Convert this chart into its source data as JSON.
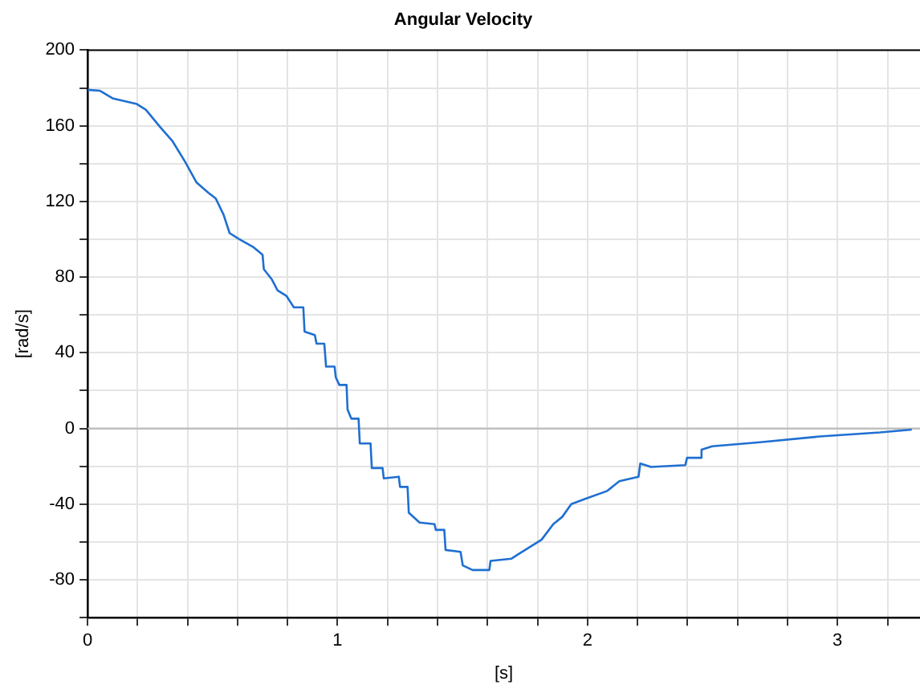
{
  "chart_data": {
    "type": "line",
    "title": "Angular Velocity",
    "xlabel": "[s]",
    "ylabel": "[rad/s]",
    "xlim": [
      0,
      3.33
    ],
    "xticks": [
      0,
      {
        "value": 0.2,
        "label": null
      },
      {
        "value": 0.4,
        "label": null
      },
      {
        "value": 0.6,
        "label": null
      },
      {
        "value": 0.8,
        "label": null
      },
      1,
      {
        "value": 1.2,
        "label": null
      },
      {
        "value": 1.4,
        "label": null
      },
      {
        "value": 1.6,
        "label": null
      },
      {
        "value": 1.8,
        "label": null
      },
      2,
      {
        "value": 2.2,
        "label": null
      },
      {
        "value": 2.4,
        "label": null
      },
      {
        "value": 2.6,
        "label": null
      },
      {
        "value": 2.8,
        "label": null
      },
      3,
      {
        "value": 3.2,
        "label": null
      }
    ],
    "ylim": [
      -100,
      200
    ],
    "yticks": [
      {
        "value": -100,
        "label": null
      },
      -80,
      {
        "value": -60,
        "label": null
      },
      -40,
      {
        "value": -20,
        "label": null
      },
      0,
      {
        "value": 20,
        "label": null
      },
      40,
      {
        "value": 60,
        "label": null
      },
      80,
      {
        "value": 100,
        "label": null
      },
      120,
      {
        "value": 140,
        "label": null
      },
      160,
      {
        "value": 180,
        "label": null
      },
      200
    ],
    "grid": true,
    "legend": false,
    "marker": "none",
    "line_style": "solid",
    "ref_lines": [
      {
        "axis": "y",
        "value": 0,
        "color": "#bbbbbb"
      }
    ],
    "series": [
      {
        "color": "#1f6fd1",
        "x": [
          0,
          0.05,
          0.1,
          0.197,
          0.233,
          0.29,
          0.34,
          0.39,
          0.436,
          0.484,
          0.513,
          0.544,
          0.568,
          0.604,
          0.664,
          0.7,
          0.705,
          0.736,
          0.76,
          0.796,
          0.825,
          0.863,
          0.868,
          0.909,
          0.916,
          0.947,
          0.954,
          0.988,
          0.993,
          1.007,
          1.036,
          1.04,
          1.055,
          1.084,
          1.089,
          1.132,
          1.137,
          1.18,
          1.185,
          1.245,
          1.25,
          1.28,
          1.285,
          1.328,
          1.388,
          1.393,
          1.427,
          1.432,
          1.492,
          1.501,
          1.54,
          1.607,
          1.612,
          1.696,
          1.731,
          1.816,
          1.863,
          1.899,
          1.935,
          1.995,
          2.079,
          2.127,
          2.204,
          2.211,
          2.254,
          2.391,
          2.398,
          2.451,
          2.456,
          2.499,
          2.69,
          2.93,
          3.17,
          3.297
        ],
        "values": [
          179,
          178.5,
          174.5,
          171.5,
          168.5,
          159.4,
          151.8,
          141,
          130,
          124.5,
          121.5,
          113,
          103.3,
          100.3,
          95.8,
          91.8,
          84.2,
          79,
          73,
          70,
          64,
          64,
          51.2,
          49.4,
          44.8,
          44.8,
          32.7,
          32.7,
          27,
          23,
          23,
          10,
          5.2,
          5.2,
          -7.9,
          -7.9,
          -20.9,
          -20.9,
          -26.4,
          -25.5,
          -30.9,
          -30.9,
          -44.5,
          -49.7,
          -50.6,
          -53.6,
          -53.6,
          -64.2,
          -65.2,
          -72.4,
          -74.8,
          -74.8,
          -70,
          -68.8,
          -65.8,
          -58.8,
          -50.6,
          -46.7,
          -40,
          -37,
          -33,
          -27.9,
          -25.5,
          -18.5,
          -20.3,
          -19.4,
          -15.5,
          -15.5,
          -11.2,
          -9.4,
          -7.3,
          -4.2,
          -2.1,
          -0.6
        ]
      }
    ]
  }
}
